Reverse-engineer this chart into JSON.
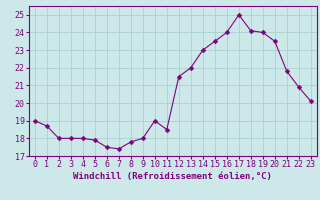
{
  "x": [
    0,
    1,
    2,
    3,
    4,
    5,
    6,
    7,
    8,
    9,
    10,
    11,
    12,
    13,
    14,
    15,
    16,
    17,
    18,
    19,
    20,
    21,
    22,
    23
  ],
  "y": [
    19.0,
    18.7,
    18.0,
    18.0,
    18.0,
    17.9,
    17.5,
    17.4,
    17.8,
    18.0,
    19.0,
    18.5,
    21.5,
    22.0,
    23.0,
    23.5,
    24.0,
    25.0,
    24.1,
    24.0,
    23.5,
    21.8,
    20.9,
    20.1
  ],
  "line_color": "#800080",
  "marker": "D",
  "marker_size": 2.5,
  "bg_color": "#cce8e8",
  "grid_color": "#aad0d0",
  "xlabel": "Windchill (Refroidissement éolien,°C)",
  "ylim": [
    17,
    25.5
  ],
  "xlim": [
    -0.5,
    23.5
  ],
  "yticks": [
    17,
    18,
    19,
    20,
    21,
    22,
    23,
    24,
    25
  ],
  "xticks": [
    0,
    1,
    2,
    3,
    4,
    5,
    6,
    7,
    8,
    9,
    10,
    11,
    12,
    13,
    14,
    15,
    16,
    17,
    18,
    19,
    20,
    21,
    22,
    23
  ],
  "tick_color": "#800080",
  "label_color": "#800080",
  "spine_color": "#800080",
  "font_size": 6,
  "xlabel_size": 6.5
}
